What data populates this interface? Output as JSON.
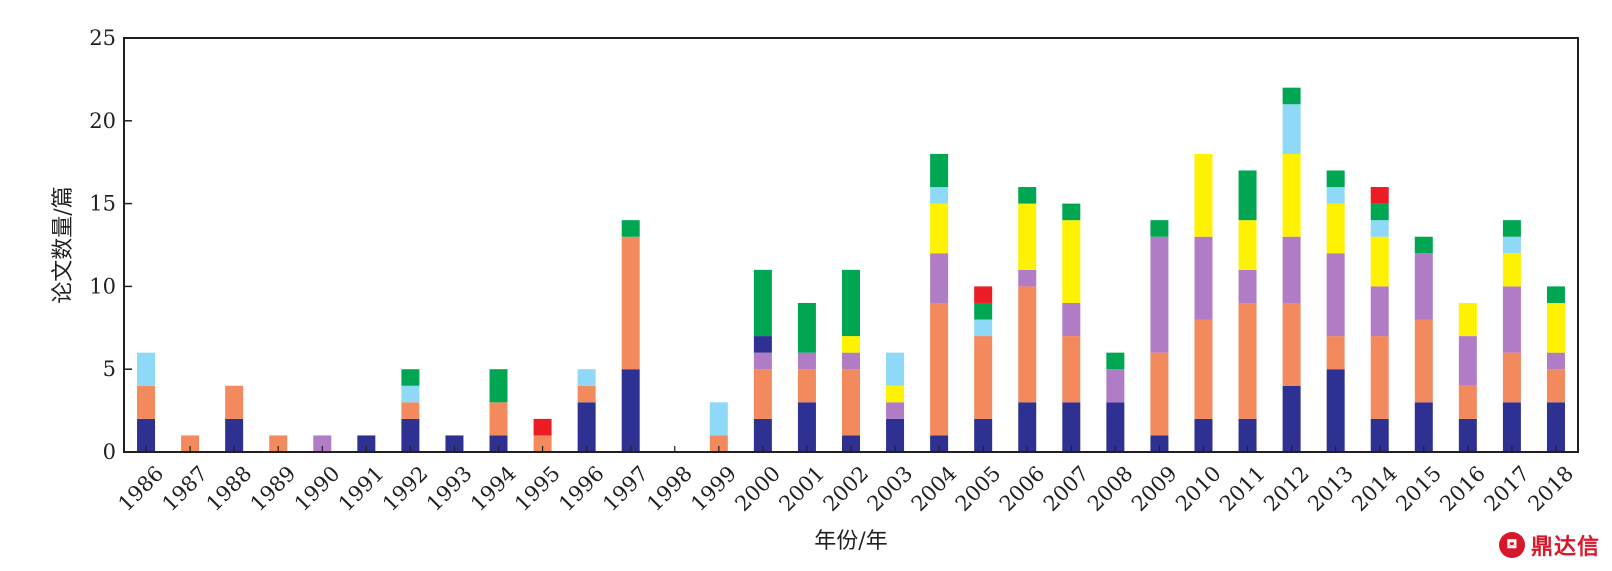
{
  "chart_data": {
    "type": "bar",
    "stacked": true,
    "title": "",
    "xlabel": "年份/年",
    "ylabel": "论文数量/篇",
    "ylim": [
      0,
      25
    ],
    "yticks": [
      0,
      5,
      10,
      15,
      20,
      25
    ],
    "grid": false,
    "legend": "none",
    "categories": [
      "1986",
      "1987",
      "1988",
      "1989",
      "1990",
      "1991",
      "1992",
      "1993",
      "1994",
      "1995",
      "1996",
      "1997",
      "1998",
      "1999",
      "2000",
      "2001",
      "2002",
      "2003",
      "2004",
      "2005",
      "2006",
      "2007",
      "2008",
      "2009",
      "2010",
      "2011",
      "2012",
      "2013",
      "2014",
      "2015",
      "2016",
      "2017",
      "2018"
    ],
    "series": [
      {
        "color": "#2e3192",
        "values": [
          2,
          0,
          2,
          0,
          0,
          1,
          2,
          1,
          1,
          0,
          3,
          5,
          0,
          0,
          2,
          3,
          1,
          2,
          1,
          2,
          3,
          3,
          3,
          1,
          2,
          2,
          4,
          5,
          2,
          3,
          2,
          3,
          3
        ]
      },
      {
        "color": "#f28a5e",
        "values": [
          2,
          1,
          2,
          1,
          0,
          0,
          1,
          0,
          2,
          1,
          1,
          8,
          0,
          1,
          3,
          2,
          4,
          0,
          8,
          5,
          7,
          4,
          0,
          5,
          6,
          7,
          5,
          2,
          5,
          5,
          2,
          3,
          2
        ]
      },
      {
        "color": "#b07cc6",
        "values": [
          0,
          0,
          0,
          0,
          1,
          0,
          0,
          0,
          0,
          0,
          0,
          0,
          0,
          0,
          1,
          1,
          1,
          1,
          3,
          0,
          1,
          2,
          2,
          7,
          5,
          2,
          4,
          5,
          3,
          4,
          3,
          4,
          1
        ]
      },
      {
        "color": "#2e3192",
        "values": [
          0,
          0,
          0,
          0,
          0,
          0,
          0,
          0,
          0,
          0,
          0,
          0,
          0,
          0,
          1,
          0,
          0,
          0,
          0,
          0,
          0,
          0,
          0,
          0,
          0,
          0,
          0,
          0,
          0,
          0,
          0,
          0,
          0
        ]
      },
      {
        "color": "#fff200",
        "values": [
          0,
          0,
          0,
          0,
          0,
          0,
          0,
          0,
          0,
          0,
          0,
          0,
          0,
          0,
          0,
          0,
          1,
          1,
          3,
          0,
          4,
          5,
          0,
          0,
          5,
          3,
          5,
          3,
          3,
          0,
          2,
          2,
          3
        ]
      },
      {
        "color": "#8ed8f8",
        "values": [
          2,
          0,
          0,
          0,
          0,
          0,
          1,
          0,
          0,
          0,
          1,
          0,
          0,
          2,
          0,
          0,
          0,
          2,
          1,
          1,
          0,
          0,
          0,
          0,
          0,
          0,
          3,
          1,
          1,
          0,
          0,
          1,
          0
        ]
      },
      {
        "color": "#00a651",
        "values": [
          0,
          0,
          0,
          0,
          0,
          0,
          1,
          0,
          2,
          0,
          0,
          1,
          0,
          0,
          4,
          3,
          4,
          0,
          2,
          1,
          1,
          1,
          1,
          1,
          0,
          3,
          1,
          1,
          1,
          1,
          0,
          1,
          1
        ]
      },
      {
        "color": "#ed1c24",
        "values": [
          0,
          0,
          0,
          0,
          0,
          0,
          0,
          0,
          0,
          1,
          0,
          0,
          0,
          0,
          0,
          0,
          0,
          0,
          0,
          1,
          0,
          0,
          0,
          0,
          0,
          0,
          0,
          0,
          1,
          0,
          0,
          0,
          0
        ]
      }
    ]
  },
  "watermark": {
    "logo": "⛾",
    "text": "鼎达信"
  }
}
